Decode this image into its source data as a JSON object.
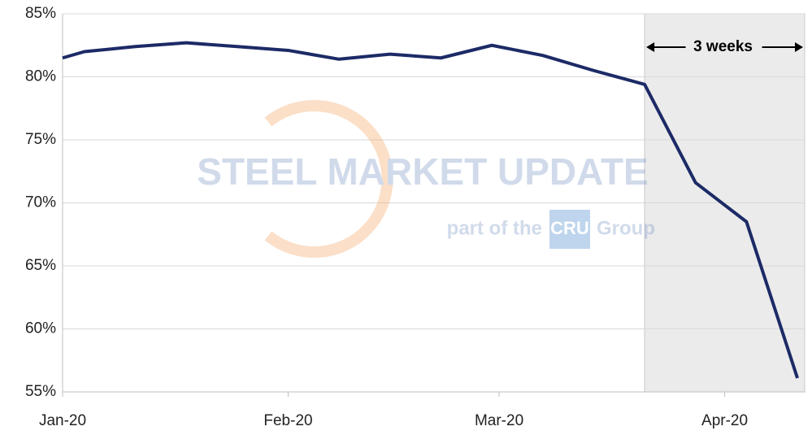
{
  "chart_data": {
    "type": "line",
    "x": [
      0,
      3,
      10,
      17,
      24,
      31,
      38,
      45,
      52,
      59,
      66,
      73,
      80,
      87,
      94,
      101
    ],
    "series": [
      {
        "color": "#1c2a66",
        "values": [
          81.5,
          82.0,
          82.4,
          82.7,
          82.4,
          82.1,
          81.4,
          81.8,
          81.5,
          82.5,
          81.7,
          80.5,
          79.4,
          71.6,
          68.5,
          56.1
        ]
      }
    ],
    "xlim": [
      0,
      102
    ],
    "xticks": [
      {
        "value": 0,
        "label": "Jan-20"
      },
      {
        "value": 31,
        "label": "Feb-20"
      },
      {
        "value": 60,
        "label": "Mar-20"
      },
      {
        "value": 91,
        "label": "Apr-20"
      }
    ],
    "ylim": [
      55,
      85
    ],
    "yticks": [
      {
        "value": 55,
        "label": "55%"
      },
      {
        "value": 60,
        "label": "60%"
      },
      {
        "value": 65,
        "label": "65%"
      },
      {
        "value": 70,
        "label": "70%"
      },
      {
        "value": 75,
        "label": "75%"
      },
      {
        "value": 80,
        "label": "80%"
      },
      {
        "value": 85,
        "label": "85%"
      }
    ],
    "grid": true,
    "highlight_range": [
      80,
      102
    ],
    "annotation": "3 weeks",
    "watermark": {
      "title": "STEEL MARKET UPDATE",
      "subtitle": "part of the",
      "badge": "CRU",
      "suffix": "Group"
    }
  }
}
